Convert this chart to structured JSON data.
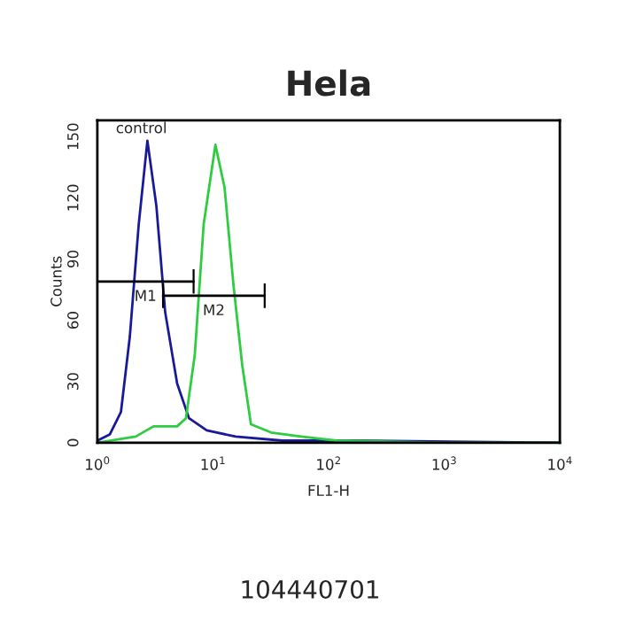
{
  "chart_data": {
    "type": "line",
    "title": "Hela",
    "xlabel": "FL1-H",
    "ylabel": "Counts",
    "log": "x",
    "xlim": [
      1,
      10000
    ],
    "xticks": [
      {
        "value": 1,
        "label": "10$^{0}$"
      },
      {
        "value": 10,
        "label": "10$^{1}$"
      },
      {
        "value": 100,
        "label": "10$^{2}$"
      },
      {
        "value": 1000,
        "label": "10$^{3}$"
      },
      {
        "value": 10000,
        "label": "10$^{4}$"
      }
    ],
    "ylim": [
      0,
      158
    ],
    "yticks": [
      0,
      30,
      60,
      90,
      120,
      150
    ],
    "grid": false,
    "legend": false,
    "series": [
      {
        "color": "#1a1a99",
        "x": [
          1.0,
          1.28,
          1.6,
          1.91,
          2.28,
          2.71,
          3.24,
          3.86,
          4.9,
          6.2,
          8.83,
          15.7,
          40,
          166,
          10000
        ],
        "values": [
          1,
          4,
          15,
          52,
          107,
          148,
          116,
          64,
          29,
          12,
          6,
          3,
          1,
          1,
          0
        ]
      },
      {
        "color": "#2ecc40",
        "x": [
          1.0,
          2.15,
          3.06,
          4.9,
          5.84,
          6.96,
          8.31,
          10.5,
          12.6,
          15.0,
          17.9,
          21.3,
          31.8,
          57.8,
          117,
          977,
          10000
        ],
        "values": [
          0,
          3,
          8,
          8,
          12,
          43,
          107,
          146,
          125,
          78,
          38,
          9,
          5,
          3,
          1,
          0,
          0
        ]
      },
      {
        "name": "M1",
        "color": "#000000",
        "x": [
          1,
          6.8
        ],
        "values": [
          79,
          79
        ],
        "errors": [
          null,
          6
        ]
      },
      {
        "name": "M2",
        "color": "#000000",
        "x": [
          3.7,
          28
        ],
        "values": [
          72,
          72
        ],
        "errors": [
          6,
          6
        ]
      }
    ],
    "annotations": [
      "control",
      "104440701"
    ]
  }
}
